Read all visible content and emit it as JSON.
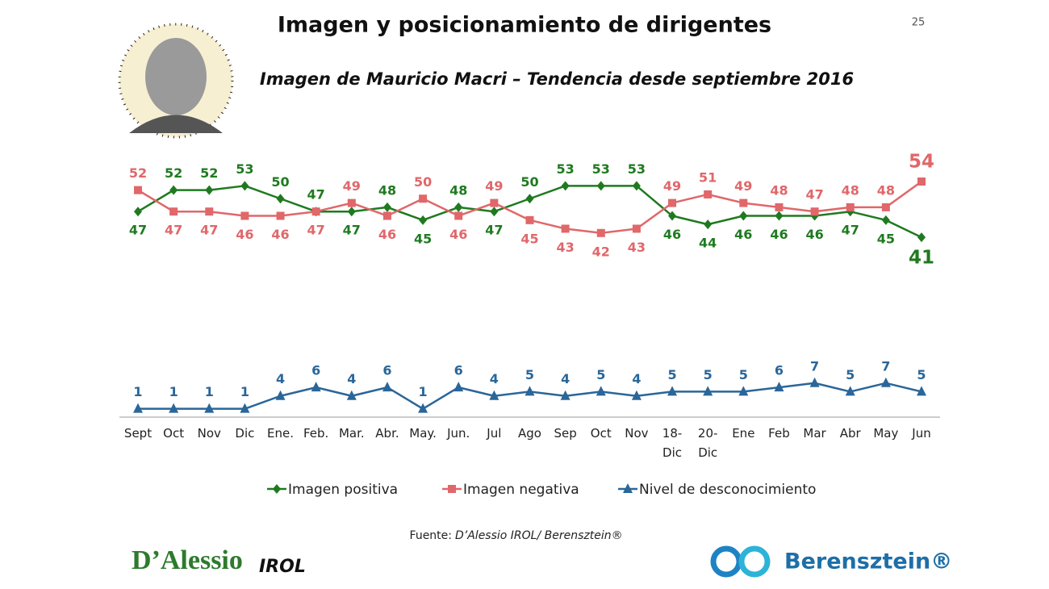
{
  "chart_data": {
    "type": "line",
    "title": "Imagen y posicionamiento de dirigentes",
    "subtitle": "Imagen de Mauricio Macri – Tendencia desde septiembre 2016",
    "categories": [
      "Sept",
      "Oct",
      "Nov",
      "Dic",
      "Ene.",
      "Feb.",
      "Mar.",
      "Abr.",
      "May.",
      "Jun.",
      "Jul",
      "Ago",
      "Sep",
      "Oct",
      "Nov",
      "18-Dic",
      "20-Dic",
      "Ene",
      "Feb",
      "Mar",
      "Abr",
      "May",
      "Jun"
    ],
    "series": [
      {
        "name": "Imagen positiva",
        "color": "#1f7a1f",
        "values": [
          47,
          52,
          52,
          53,
          50,
          47,
          47,
          48,
          45,
          48,
          47,
          50,
          53,
          53,
          53,
          46,
          44,
          46,
          46,
          46,
          47,
          45,
          41
        ]
      },
      {
        "name": "Imagen negativa",
        "color": "#e0676a",
        "values": [
          52,
          47,
          47,
          46,
          46,
          47,
          49,
          46,
          50,
          46,
          49,
          45,
          43,
          42,
          43,
          49,
          51,
          49,
          48,
          47,
          48,
          48,
          54
        ]
      },
      {
        "name": "Nivel de desconocimiento",
        "color": "#2a6699",
        "values": [
          1,
          1,
          1,
          1,
          4,
          6,
          4,
          6,
          1,
          6,
          4,
          5,
          4,
          5,
          4,
          5,
          5,
          5,
          6,
          7,
          5,
          7,
          5
        ]
      }
    ],
    "legend": "bottom"
  },
  "slide": {
    "page_number": "25",
    "source_label": "Fuente:",
    "source": "D’Alessio IROL/ Berensztein®",
    "logo_left": "D’Alessio",
    "logo_left_suffix": "IROL",
    "logo_right": "Berensztein®"
  }
}
